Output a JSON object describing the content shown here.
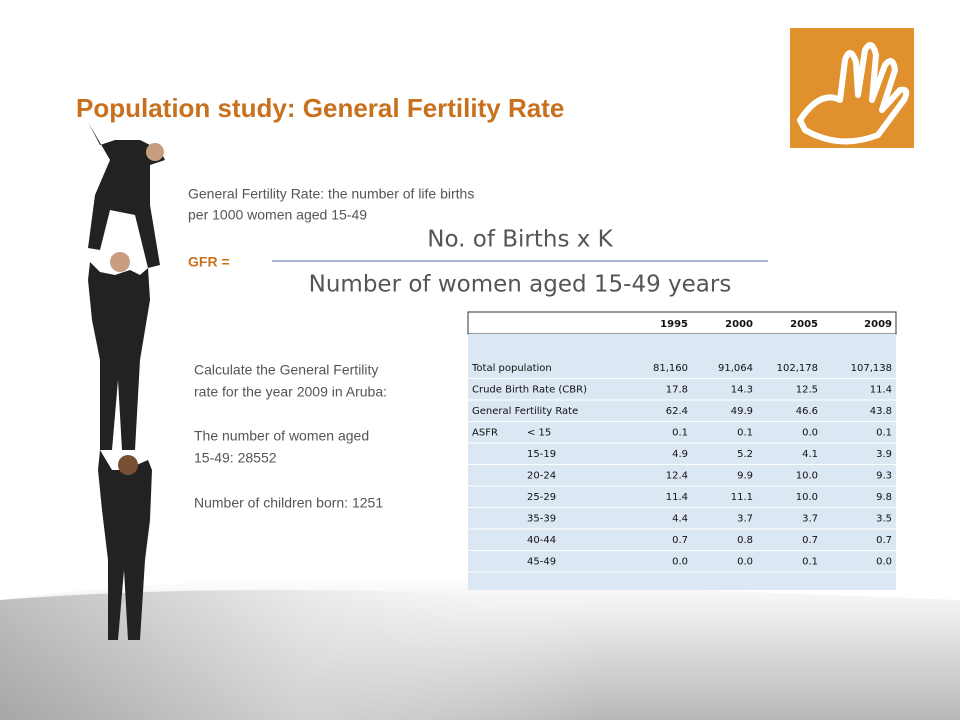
{
  "title": "Population study: General Fertility Rate",
  "definition": [
    "General Fertility Rate: the number of life births",
    "per 1000 women aged 15-49"
  ],
  "formula": {
    "lhs": "GFR =",
    "numerator": "No. of Births x K",
    "denominator": "Number of women aged 15-49 years"
  },
  "instructions": [
    "Calculate the General Fertility",
    "rate for the year 2009 in Aruba:",
    "The number of women aged",
    "15-49: 28552",
    "Number of children born: 1251"
  ],
  "table": {
    "header": [
      "1995",
      "2000",
      "2005",
      "2009"
    ],
    "rows": [
      {
        "label": "Total population",
        "values": [
          "81,160",
          "91,064",
          "102,178",
          "107,138"
        ]
      },
      {
        "label": "Crude Birth Rate (CBR)",
        "values": [
          "17.8",
          "14.3",
          "12.5",
          "11.4"
        ]
      },
      {
        "label": "General Fertility Rate",
        "values": [
          "62.4",
          "49.9",
          "46.6",
          "43.8"
        ]
      },
      {
        "label": "ASFR",
        "age": "< 15",
        "values": [
          "0.1",
          "0.1",
          "0.0",
          "0.1"
        ]
      },
      {
        "age": "15-19",
        "values": [
          "4.9",
          "5.2",
          "4.1",
          "3.9"
        ]
      },
      {
        "age": "20-24",
        "values": [
          "12.4",
          "9.9",
          "10.0",
          "9.3"
        ]
      },
      {
        "age": "25-29",
        "values": [
          "11.4",
          "11.1",
          "10.0",
          "9.8"
        ]
      },
      {
        "age": "35-39",
        "values": [
          "4.4",
          "3.7",
          "3.7",
          "3.5"
        ]
      },
      {
        "age": "40-44",
        "values": [
          "0.7",
          "0.8",
          "0.7",
          "0.7"
        ]
      },
      {
        "age": "45-49",
        "values": [
          "0.0",
          "0.0",
          "0.1",
          "0.0"
        ]
      }
    ]
  }
}
